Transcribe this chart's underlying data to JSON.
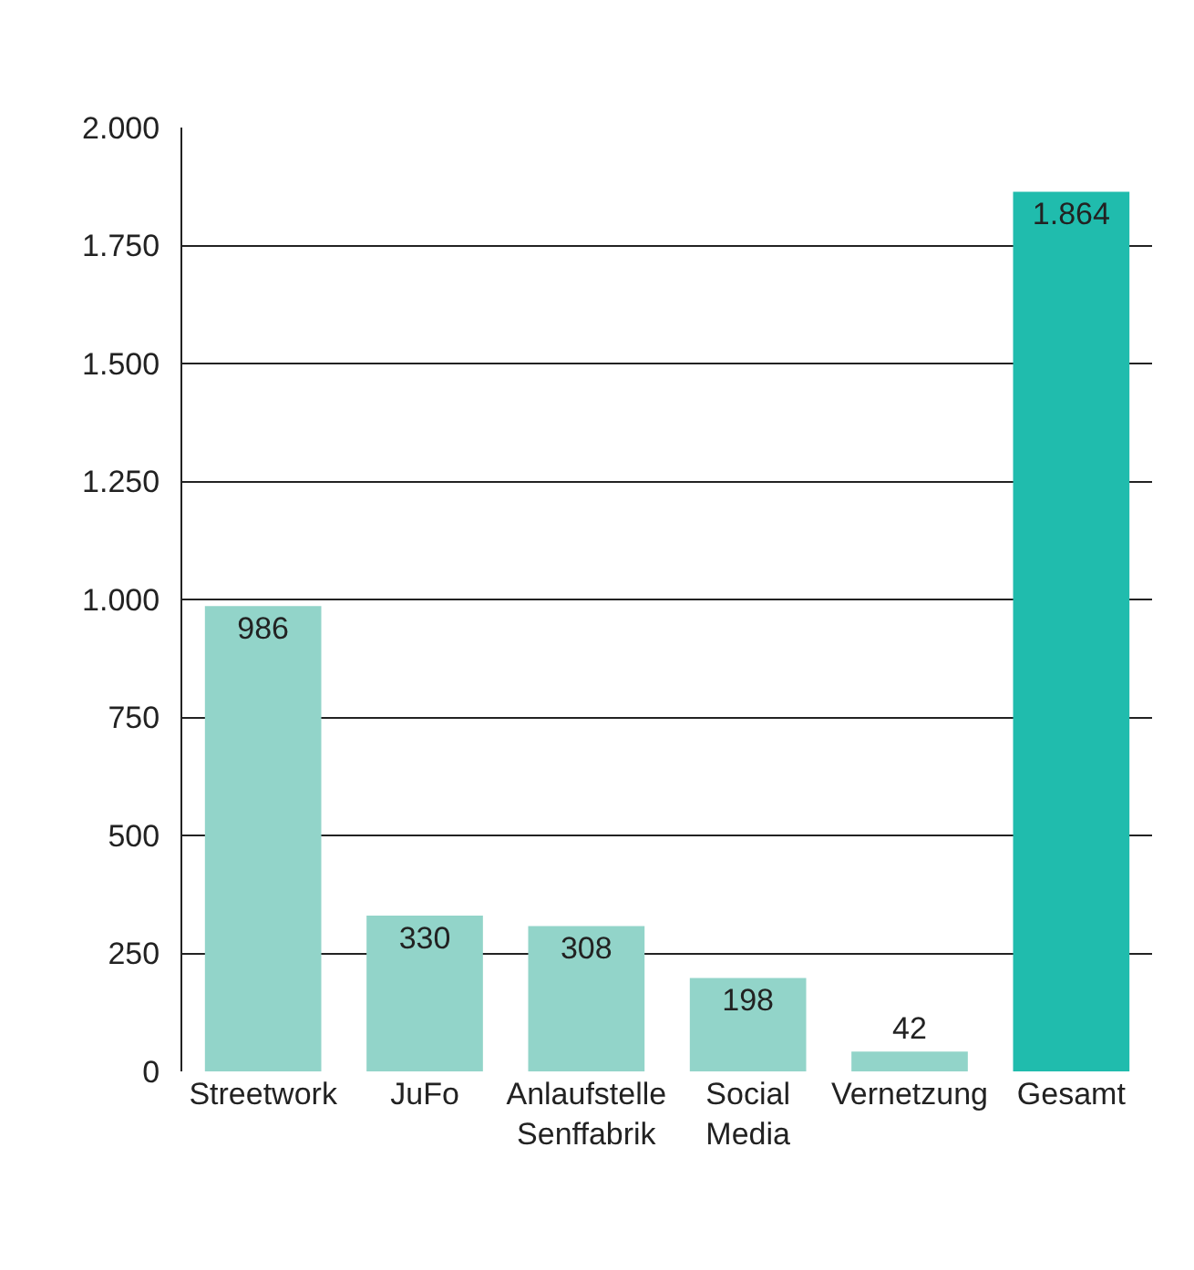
{
  "chart_data": {
    "type": "bar",
    "categories": [
      "Streetwork",
      "JuFo",
      "Anlaufstelle\nSenffabrik",
      "Social\nMedia",
      "Vernetzung",
      "Gesamt"
    ],
    "values": [
      986,
      330,
      308,
      198,
      42,
      1864
    ],
    "colors": [
      "#92d4c9",
      "#92d4c9",
      "#92d4c9",
      "#92d4c9",
      "#92d4c9",
      "#20bcad"
    ],
    "value_labels": [
      "986",
      "330",
      "308",
      "198",
      "42",
      "1.864"
    ],
    "ylim": [
      0,
      2000
    ],
    "yticks": [
      0,
      {
        "value": 250,
        "label": "250"
      },
      {
        "value": 500,
        "label": "500"
      },
      {
        "value": 750,
        "label": "750"
      },
      {
        "value": 1000,
        "label": "1.000"
      },
      {
        "value": 1250,
        "label": "1.250"
      },
      {
        "value": 1500,
        "label": "1.500"
      },
      {
        "value": 1750,
        "label": "1.750"
      },
      {
        "value": 2000,
        "label": "2.000"
      }
    ],
    "grid": "y"
  }
}
